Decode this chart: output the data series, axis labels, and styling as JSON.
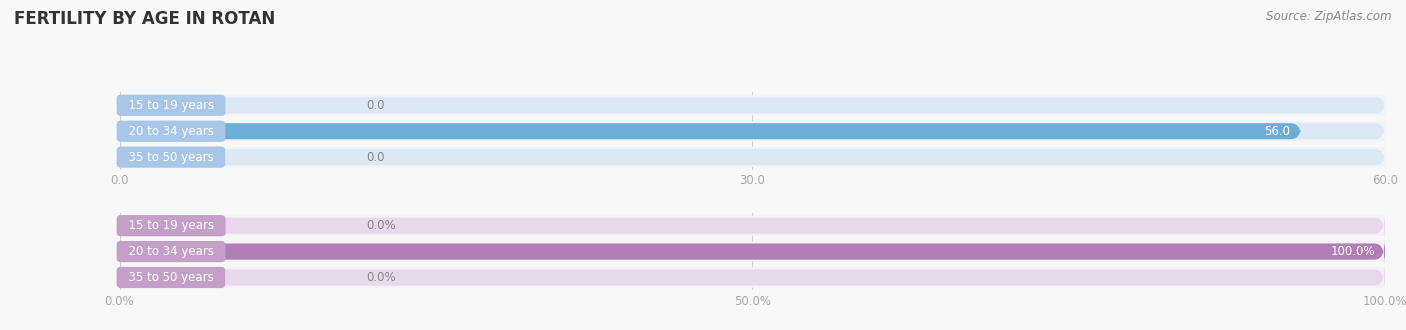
{
  "title": "FERTILITY BY AGE IN ROTAN",
  "source": "Source: ZipAtlas.com",
  "top_chart": {
    "categories": [
      "15 to 19 years",
      "20 to 34 years",
      "35 to 50 years"
    ],
    "values": [
      0.0,
      56.0,
      0.0
    ],
    "xlim": [
      0,
      60.0
    ],
    "xticks": [
      0.0,
      30.0,
      60.0
    ],
    "xtick_labels": [
      "0.0",
      "30.0",
      "60.0"
    ],
    "bar_color": "#6baed6",
    "bar_bg_color": "#dce9f5",
    "row_bg_color": "#f0f4fa",
    "label_bg_color": "#a8c6e8",
    "value_color_onbar": "#ffffff",
    "value_color_offbar": "#888888"
  },
  "bottom_chart": {
    "categories": [
      "15 to 19 years",
      "20 to 34 years",
      "35 to 50 years"
    ],
    "values": [
      0.0,
      100.0,
      0.0
    ],
    "xlim": [
      0,
      100.0
    ],
    "xticks": [
      0.0,
      50.0,
      100.0
    ],
    "xtick_labels": [
      "0.0%",
      "50.0%",
      "100.0%"
    ],
    "bar_color": "#b07db5",
    "bar_bg_color": "#e8d8ec",
    "row_bg_color": "#f5f0f7",
    "label_bg_color": "#c4a0c8",
    "value_color_onbar": "#ffffff",
    "value_color_offbar": "#888888"
  },
  "fig_bg_color": "#f8f8f8",
  "row_separator_color": "#ffffff",
  "title_color": "#333333",
  "source_color": "#888888",
  "tick_color": "#aaaaaa",
  "title_fontsize": 12,
  "source_fontsize": 8.5,
  "label_fontsize": 8.5,
  "value_fontsize": 8.5,
  "tick_fontsize": 8.5
}
